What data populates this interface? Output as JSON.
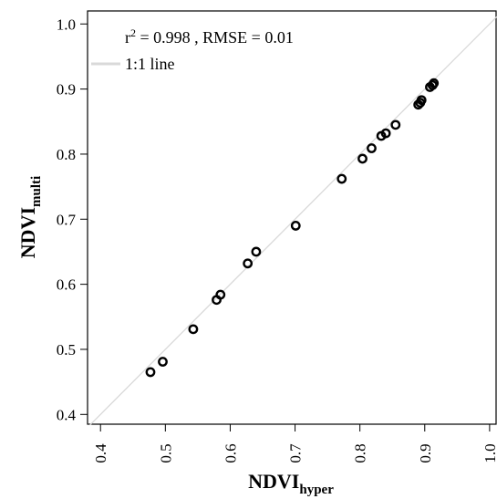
{
  "chart_data": {
    "type": "scatter",
    "xlabel": {
      "main": "NDVI",
      "sub": "hyper"
    },
    "ylabel": {
      "main": "NDVI",
      "sub": "multi"
    },
    "xlim": [
      0.38,
      1.01
    ],
    "ylim": [
      0.385,
      1.02
    ],
    "xticks": [
      "0.4",
      "0.5",
      "0.6",
      "0.7",
      "0.8",
      "0.9",
      "1.0"
    ],
    "yticks": [
      "0.4",
      "0.5",
      "0.6",
      "0.7",
      "0.8",
      "0.9",
      "1.0"
    ],
    "grid": false,
    "reference_line": {
      "label": "1:1 line",
      "color": "#d9d9d9"
    },
    "stats": {
      "r_prefix": "r",
      "r_sup": "2",
      "r_value": " = 0.998 , RMSE = 0.01"
    },
    "series": [
      {
        "x": [
          0.477,
          0.496,
          0.543,
          0.579,
          0.585,
          0.627,
          0.64,
          0.701,
          0.772,
          0.804,
          0.818,
          0.833,
          0.84,
          0.855,
          0.89,
          0.893,
          0.895,
          0.908,
          0.912,
          0.914
        ],
        "y": [
          0.465,
          0.481,
          0.531,
          0.576,
          0.584,
          0.632,
          0.65,
          0.69,
          0.762,
          0.793,
          0.809,
          0.828,
          0.832,
          0.845,
          0.876,
          0.879,
          0.883,
          0.903,
          0.906,
          0.909
        ]
      }
    ]
  }
}
